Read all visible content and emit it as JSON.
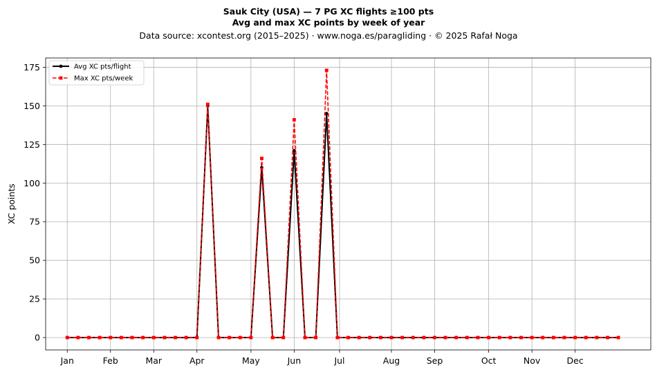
{
  "header": {
    "title_line1": "Sauk City (USA)  —  7 PG XC flights ≥100 pts",
    "title_line2": "Avg and max XC points by week of year",
    "subtitle": "Data source: xcontest.org (2015–2025)  ·  www.noga.es/paragliding  ·  © 2025 Rafał Noga"
  },
  "chart_data": {
    "type": "line",
    "title": "Sauk City (USA)  —  7 PG XC flights ≥100 pts\nAvg and max XC points by week of year",
    "subtitle": "Data source: xcontest.org (2015–2025)  ·  www.noga.es/paragliding  ·  © 2025 Rafał Noga",
    "xlabel": "",
    "ylabel": "XC points",
    "x_label_kind": "week of year",
    "x": [
      1,
      2,
      3,
      4,
      5,
      6,
      7,
      8,
      9,
      10,
      11,
      12,
      13,
      14,
      15,
      16,
      17,
      18,
      19,
      20,
      21,
      22,
      23,
      24,
      25,
      26,
      27,
      28,
      29,
      30,
      31,
      32,
      33,
      34,
      35,
      36,
      37,
      38,
      39,
      40,
      41,
      42,
      43,
      44,
      45,
      46,
      47,
      48,
      49,
      50,
      51,
      52
    ],
    "xlim": [
      -1,
      55
    ],
    "x_ticks": [
      {
        "label": "Jan",
        "week": 1.0
      },
      {
        "label": "Feb",
        "week": 5.0
      },
      {
        "label": "Mar",
        "week": 9.0
      },
      {
        "label": "Apr",
        "week": 13.0
      },
      {
        "label": "May",
        "week": 18.0
      },
      {
        "label": "Jun",
        "week": 22.0
      },
      {
        "label": "Jul",
        "week": 26.2
      },
      {
        "label": "Aug",
        "week": 31.0
      },
      {
        "label": "Sep",
        "week": 35.0
      },
      {
        "label": "Oct",
        "week": 40.0
      },
      {
        "label": "Nov",
        "week": 44.0
      },
      {
        "label": "Dec",
        "week": 48.0
      }
    ],
    "ylim": [
      -8,
      181
    ],
    "y_ticks": [
      0,
      25,
      50,
      75,
      100,
      125,
      150,
      175
    ],
    "grid": true,
    "legend_position": "upper left",
    "series": [
      {
        "name": "Avg XC pts/flight",
        "color": "#000000",
        "style": "solid",
        "marker": "circle",
        "values": [
          0,
          0,
          0,
          0,
          0,
          0,
          0,
          0,
          0,
          0,
          0,
          0,
          0,
          150,
          0,
          0,
          0,
          0,
          110,
          0,
          0,
          121,
          0,
          0,
          145,
          0,
          0,
          0,
          0,
          0,
          0,
          0,
          0,
          0,
          0,
          0,
          0,
          0,
          0,
          0,
          0,
          0,
          0,
          0,
          0,
          0,
          0,
          0,
          0,
          0,
          0,
          0
        ]
      },
      {
        "name": "Max XC pts/week",
        "color": "#ff0000",
        "style": "dashed",
        "marker": "square",
        "values": [
          0,
          0,
          0,
          0,
          0,
          0,
          0,
          0,
          0,
          0,
          0,
          0,
          0,
          151,
          0,
          0,
          0,
          0,
          116,
          0,
          0,
          141,
          0,
          0,
          173,
          0,
          0,
          0,
          0,
          0,
          0,
          0,
          0,
          0,
          0,
          0,
          0,
          0,
          0,
          0,
          0,
          0,
          0,
          0,
          0,
          0,
          0,
          0,
          0,
          0,
          0,
          0
        ]
      }
    ]
  }
}
